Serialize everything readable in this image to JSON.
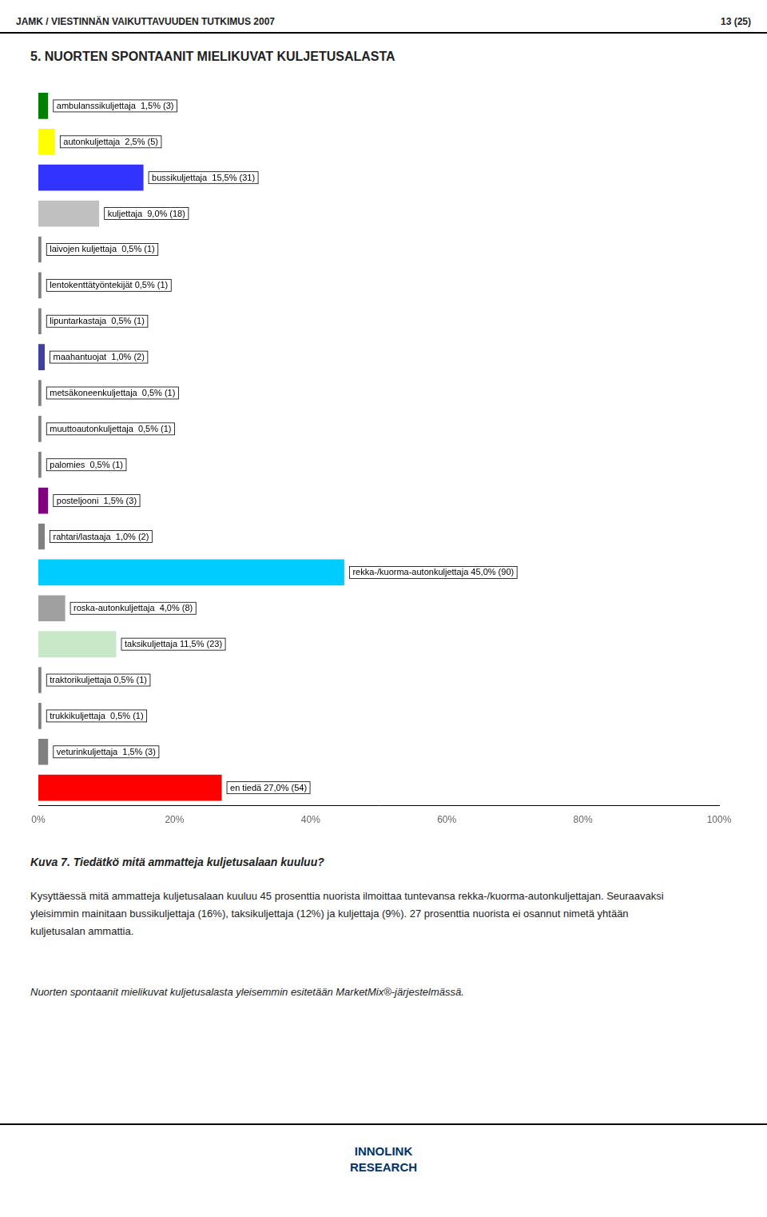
{
  "chart_data": {
    "type": "bar",
    "orientation": "horizontal",
    "title": "5. NUORTEN SPONTAANIT MIELIKUVAT KULJETUSALASTA",
    "categories": [
      "ambulanssikuljettaja  1,5% (3)",
      "autonkuljettaja  2,5% (5)",
      "bussikuljettaja  15,5% (31)",
      "kuljettaja  9,0% (18)",
      "laivojen kuljettaja  0,5% (1)",
      "lentokenttätyöntekijät 0,5% (1)",
      "lipuntarkastaja  0,5% (1)",
      "maahantuojat  1,0% (2)",
      "metsäkoneenkuljettaja  0,5% (1)",
      "muuttoautonkuljettaja  0,5% (1)",
      "palomies  0,5% (1)",
      "posteljooni  1,5% (3)",
      "rahtari/lastaaja  1,0% (2)",
      "rekka-/kuorma-autonkuljettaja 45,0% (90)",
      "roska-autonkuljettaja  4,0% (8)",
      "taksikuljettaja 11,5% (23)",
      "traktorikuljettaja 0,5% (1)",
      "trukkikuljettaja  0,5% (1)",
      "veturinkuljettaja  1,5% (3)",
      "en tiedä 27,0% (54)"
    ],
    "values": [
      1.5,
      2.5,
      15.5,
      9.0,
      0.5,
      0.5,
      0.5,
      1.0,
      0.5,
      0.5,
      0.5,
      1.5,
      1.0,
      45.0,
      4.0,
      11.5,
      0.5,
      0.5,
      1.5,
      27.0
    ],
    "colors": [
      "#008000",
      "#ffff00",
      "#3333ff",
      "#c0c0c0",
      "#808080",
      "#808080",
      "#808080",
      "#4040a0",
      "#808080",
      "#808080",
      "#808080",
      "#800080",
      "#808080",
      "#00ccff",
      "#a0a0a0",
      "#c8e8c8",
      "#808080",
      "#808080",
      "#808080",
      "#ff0000"
    ],
    "xlim": [
      0,
      100
    ],
    "xticks": [
      {
        "value": 0,
        "label": "0%"
      },
      {
        "value": 20,
        "label": "20%"
      },
      {
        "value": 40,
        "label": "40%"
      },
      {
        "value": 60,
        "label": "60%"
      },
      {
        "value": 80,
        "label": "80%"
      },
      {
        "value": 100,
        "label": "100%"
      }
    ],
    "grid": false,
    "tick_labels": "x",
    "annotations": [
      "JAMK / VIESTINNÄN VAIKUTTAVUUDEN TUTKIMUS 2007",
      "13 (25)",
      "Kuva 7. Tiedätkö mitä ammatteja kuljetusalaan kuuluu?",
      "Kysyttäessä mitä ammatteja kuljetusalaan kuuluu 45 prosenttia nuorista ilmoittaa tuntevansa rekka-/kuorma-autonkuljettajan. Seuraavaksi yleisimmin mainitaan bussikuljettaja (16%), taksikuljettaja (12%) ja kuljettaja (9%). 27 prosenttia nuorista ei osannut nimetä yhtään kuljetusalan ammattia.",
      "Nuorten spontaanit mielikuvat kuljetusalasta yleisemmin esitetään MarketMix®-järjestelmässä.",
      "INNOLINK\nRESEARCH"
    ]
  }
}
